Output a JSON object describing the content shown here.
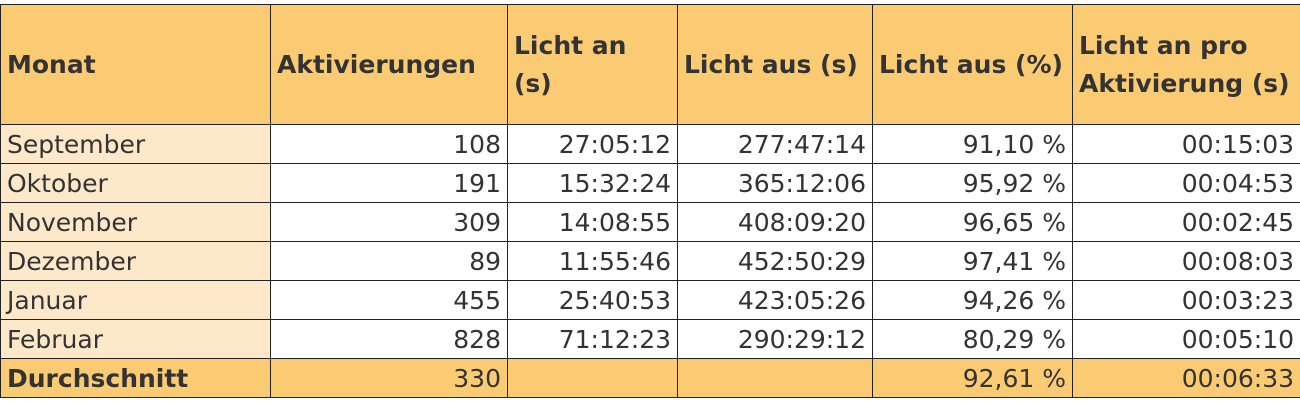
{
  "headers": [
    "Monat",
    "Aktivierungen",
    "Licht an (s)",
    "Licht aus (s)",
    "Licht aus (%)",
    "Licht an pro Aktivierung (s)"
  ],
  "rows": [
    [
      "September",
      "108",
      "27:05:12",
      "277:47:14",
      "91,10 %",
      "00:15:03"
    ],
    [
      "Oktober",
      "191",
      "15:32:24",
      "365:12:06",
      "95,92 %",
      "00:04:53"
    ],
    [
      "November",
      "309",
      "14:08:55",
      "408:09:20",
      "96,65 %",
      "00:02:45"
    ],
    [
      "Dezember",
      "89",
      "11:55:46",
      "452:50:29",
      "97,41 %",
      "00:08:03"
    ],
    [
      "Januar",
      "455",
      "25:40:53",
      "423:05:26",
      "94,26 %",
      "00:03:23"
    ],
    [
      "Februar",
      "828",
      "71:12:23",
      "290:29:12",
      "80,29 %",
      "00:05:10"
    ]
  ],
  "average": [
    "Durchschnitt",
    "330",
    "",
    "",
    "92,61 %",
    "00:06:33"
  ],
  "colors": {
    "header": "#fbcb74",
    "month_column": "#fde9c9",
    "text": "#333333"
  }
}
